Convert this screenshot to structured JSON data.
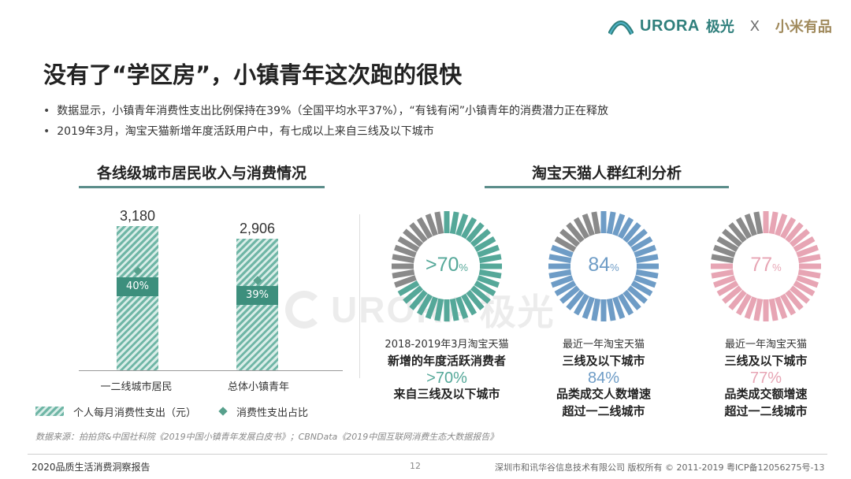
{
  "header": {
    "brand": "URORA",
    "brand_cn": "极光",
    "x": "X",
    "partner": "小米有品"
  },
  "title": "没有了“学区房”，小镇青年这次跑的很快",
  "bullets": [
    "数据显示，小镇青年消费性支出比例保持在39%（全国平均水平37%），“有钱有闲”小镇青年的消费潜力正在释放",
    "2019年3月，淘宝天猫新增年度活跃用户中，有七成以上来自三线及以下城市"
  ],
  "left_section": {
    "title": "各线级城市居民收入与消费情况"
  },
  "right_section": {
    "title": "淘宝天猫人群红利分析"
  },
  "chart_data": [
    {
      "type": "bar",
      "categories": [
        "一二线城市居民",
        "总体小镇青年"
      ],
      "series": [
        {
          "name": "个人每月消费性支出（元）",
          "values": [
            3180,
            2906
          ],
          "labels": [
            "3,180",
            "2,906"
          ]
        },
        {
          "name": "消费性支出占比",
          "values": [
            40,
            39
          ],
          "labels": [
            "40%",
            "39%"
          ]
        }
      ],
      "ylim": [
        0,
        3180
      ],
      "legend": "bottom"
    },
    {
      "type": "pie",
      "donuts": [
        {
          "pct_label": ">70",
          "value": 70,
          "color": "#55a899",
          "desc_top": "2018-2019年3月淘宝天猫",
          "desc_bold": "新增的年度活跃消费者",
          "desc_big": ">70%",
          "desc_bottom": "来自三线及以下城市"
        },
        {
          "pct_label": "84",
          "value": 84,
          "color": "#6e9cc6",
          "desc_top": "最近一年淘宝天猫",
          "desc_bold": "三线及以下城市",
          "desc_big": "84%",
          "desc_bottom": "品类成交人数增速",
          "desc_bottom2": "超过一二线城市"
        },
        {
          "pct_label": "77",
          "value": 77,
          "color": "#e7a5b4",
          "desc_top": "最近一年淘宝天猫",
          "desc_bold": "三线及以下城市",
          "desc_big": "77%",
          "desc_bottom": "品类成交额增速",
          "desc_bottom2": "超过一二线城市"
        }
      ],
      "inactive_color": "#8a8a8a"
    }
  ],
  "legend": {
    "bar_label": "个人每月消费性支出（元）",
    "ratio_label": "消费性支出占比"
  },
  "source": "数据来源：拍拍贷&中国社科院《2019中国小镇青年发展白皮书》；CBNData《2019中国互联网消费生态大数据报告》",
  "footer": {
    "left": "2020品质生活消费洞察报告",
    "page": "12",
    "right": "深圳市和讯华谷信息技术有限公司 版权所有 © 2011-2019 粤ICP备12056275号-13"
  },
  "watermark": {
    "brand": "URORA",
    "brand_cn": "极光"
  },
  "colors": {
    "accent": "#3d8f7d",
    "teal": "#55a899",
    "blue": "#6e9cc6",
    "pink": "#e7a5b4"
  }
}
